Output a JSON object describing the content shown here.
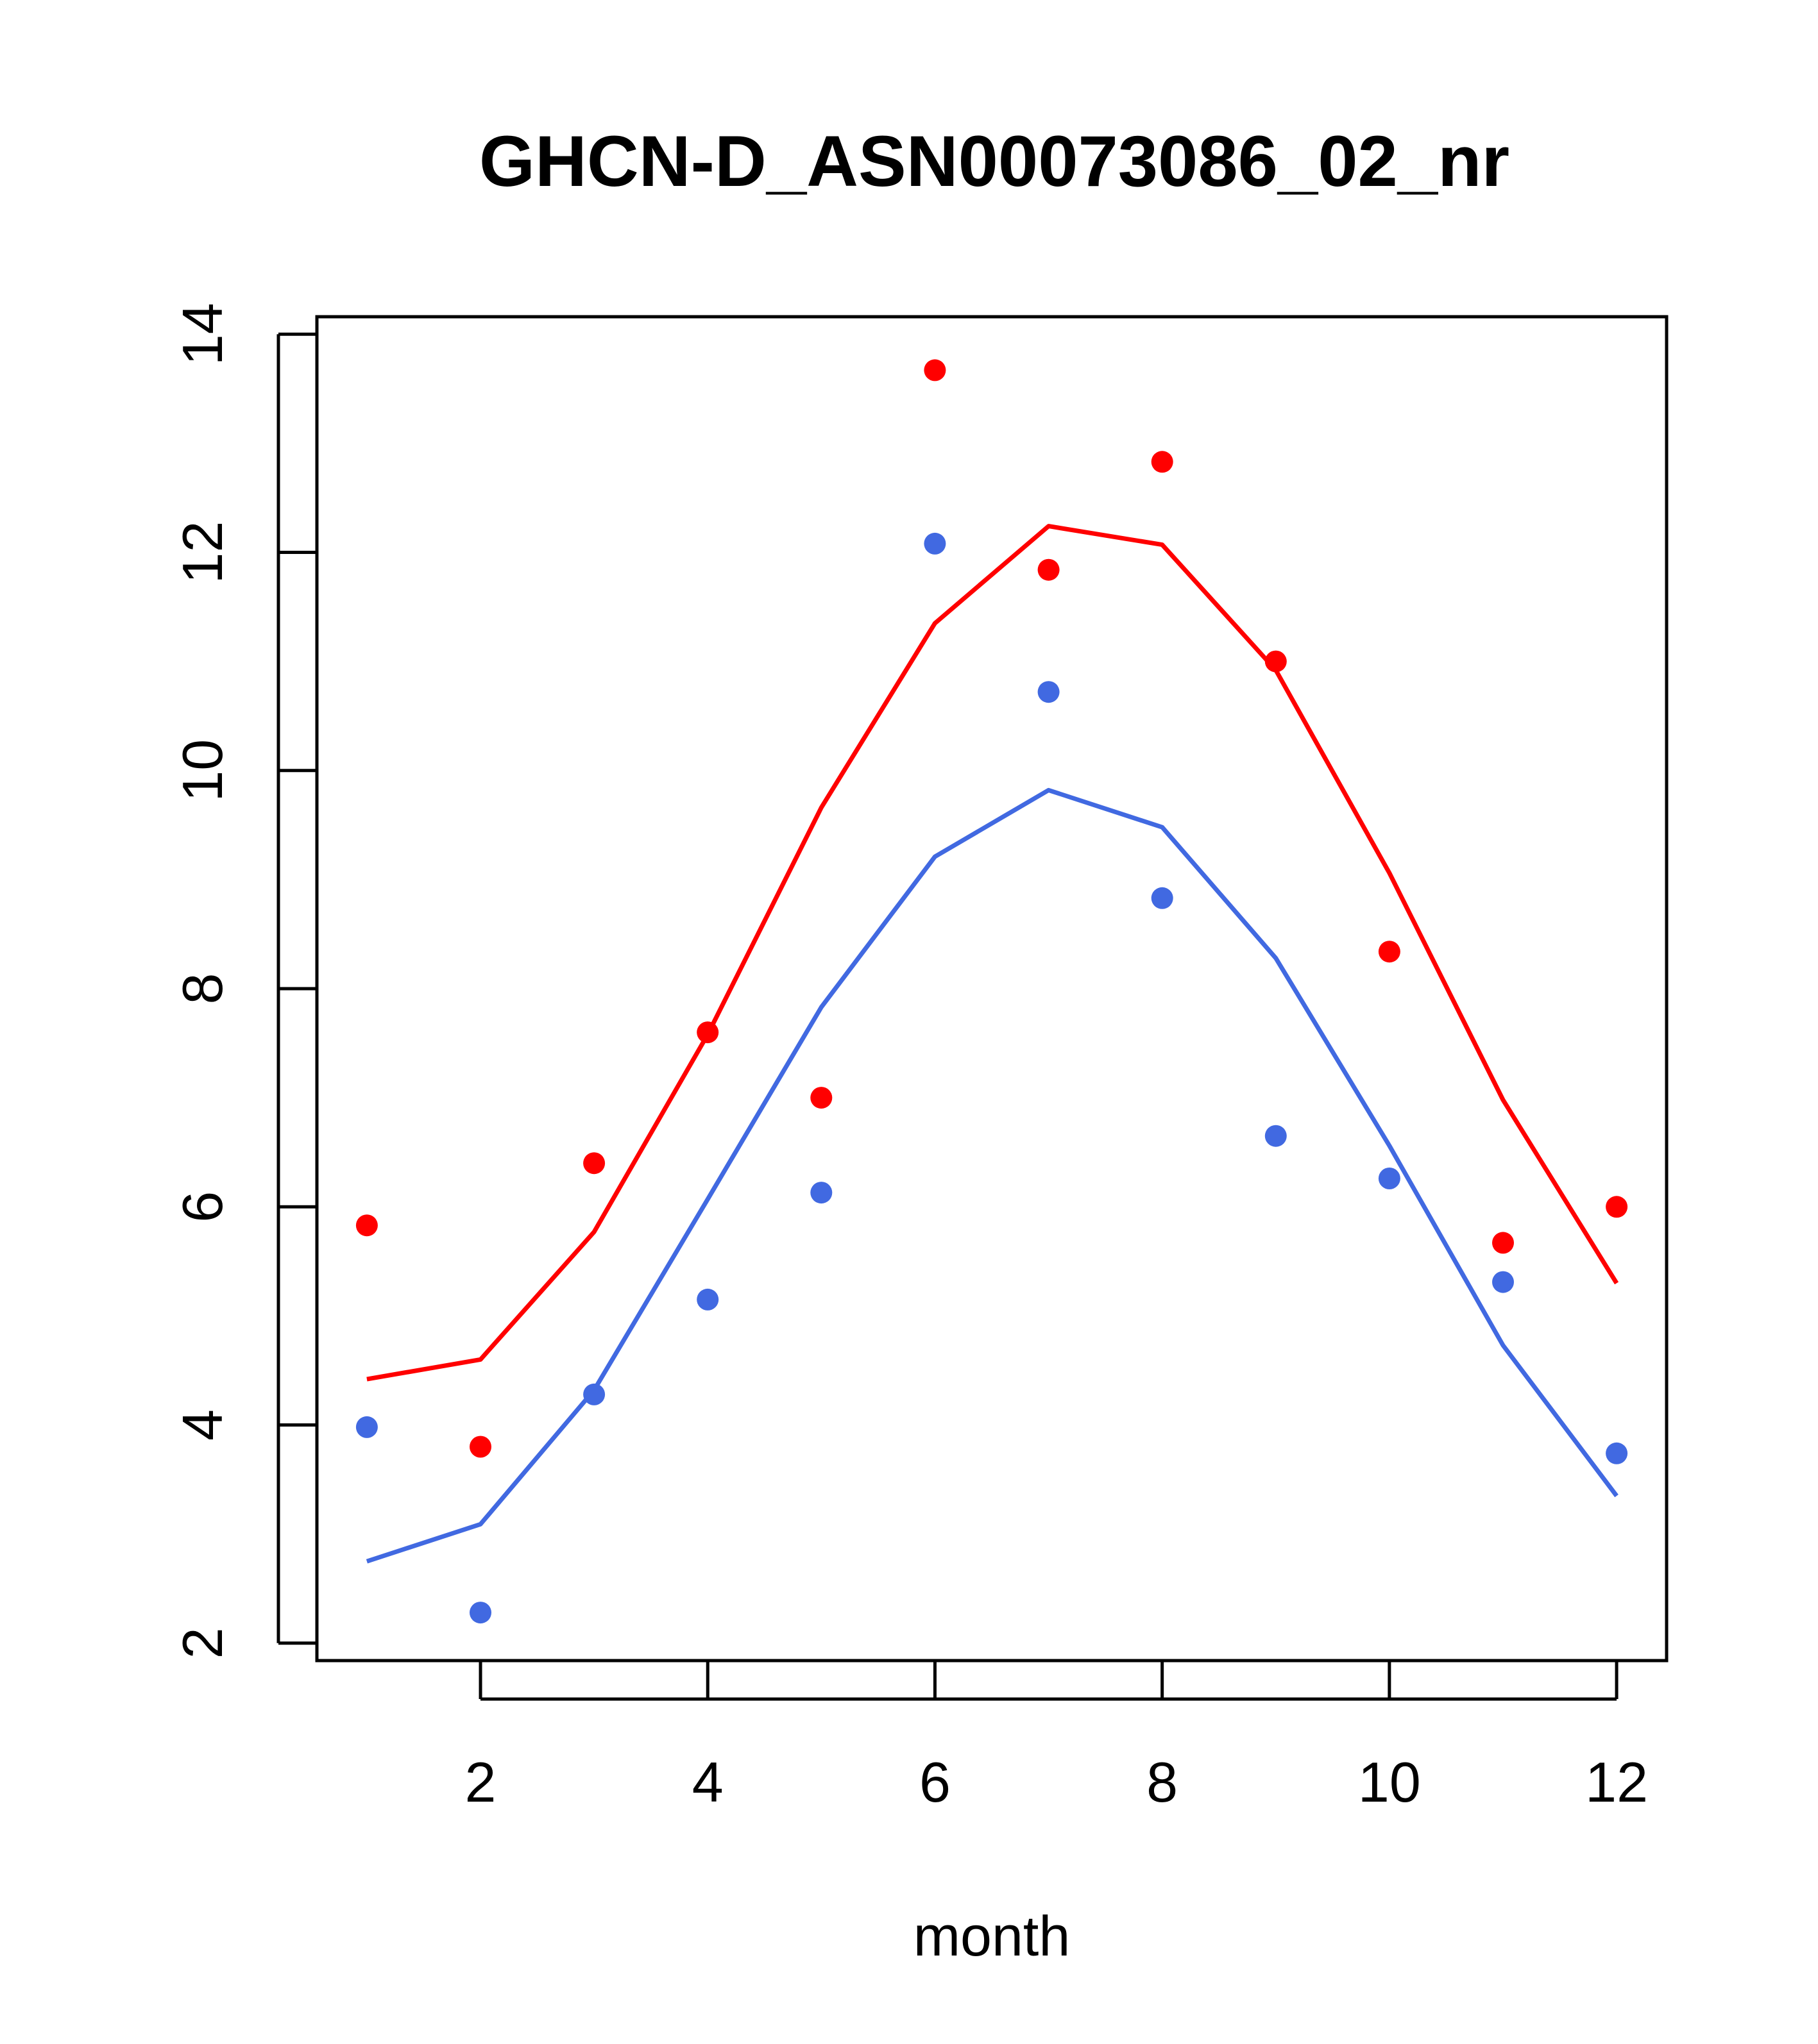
{
  "chart_data": {
    "type": "line",
    "title": "GHCN-D_ASN00073086_02_nr",
    "xlabel": "month",
    "ylabel": "",
    "xlim": [
      0.56,
      12.44
    ],
    "ylim": [
      1.84,
      14.16
    ],
    "x_ticks": [
      2,
      4,
      6,
      8,
      10,
      12
    ],
    "y_ticks": [
      2,
      4,
      6,
      8,
      10,
      12,
      14
    ],
    "grid": false,
    "legend": "none",
    "series": [
      {
        "kind": "line",
        "color": "#ff0000",
        "x": [
          1,
          2,
          3,
          4,
          5,
          6,
          7,
          8,
          9,
          10,
          11,
          12
        ],
        "y": [
          4.42,
          4.6,
          5.77,
          7.58,
          9.66,
          11.35,
          12.24,
          12.07,
          10.92,
          9.06,
          6.98,
          5.3
        ]
      },
      {
        "kind": "points",
        "color": "#ff0000",
        "x": [
          1,
          2,
          3,
          4,
          5,
          6,
          7,
          8,
          9,
          10,
          11,
          12
        ],
        "y": [
          5.83,
          3.8,
          6.4,
          7.6,
          7.0,
          13.67,
          11.84,
          12.83,
          11.0,
          8.34,
          5.67,
          6.0
        ]
      },
      {
        "kind": "line",
        "color": "#4169e1",
        "x": [
          1,
          2,
          3,
          4,
          5,
          6,
          7,
          8,
          9,
          10,
          11,
          12
        ],
        "y": [
          2.75,
          3.09,
          4.32,
          6.07,
          7.83,
          9.21,
          9.82,
          9.48,
          8.28,
          6.56,
          4.73,
          3.35
        ]
      },
      {
        "kind": "points",
        "color": "#4169e1",
        "x": [
          1,
          2,
          3,
          4,
          5,
          6,
          7,
          8,
          9,
          10,
          11,
          12
        ],
        "y": [
          3.98,
          2.28,
          4.28,
          5.15,
          6.13,
          12.08,
          10.72,
          8.83,
          6.65,
          6.26,
          5.31,
          3.74
        ]
      }
    ]
  }
}
